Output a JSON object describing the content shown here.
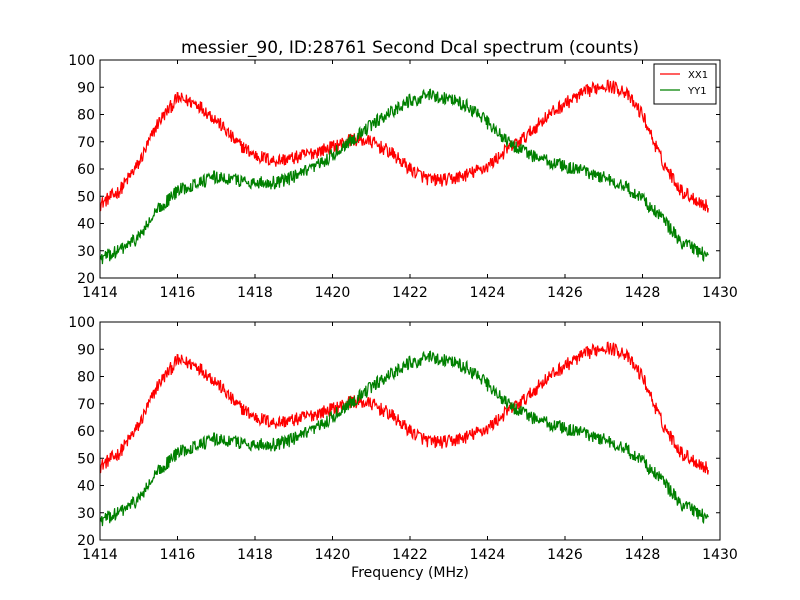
{
  "figure": {
    "title": "messier_90, ID:28761 Second Dcal spectrum (counts)",
    "xlabel": "Frequency (MHz)"
  },
  "chart_data": [
    {
      "type": "line",
      "title": "messier_90, ID:28761 Second Dcal spectrum (counts)",
      "xlabel": "",
      "ylabel": "",
      "xlim": [
        1414,
        1430
      ],
      "ylim": [
        20,
        100
      ],
      "x_ticks": [
        1414,
        1416,
        1418,
        1420,
        1422,
        1424,
        1426,
        1428,
        1430
      ],
      "y_ticks": [
        20,
        30,
        40,
        50,
        60,
        70,
        80,
        90,
        100
      ],
      "grid": false,
      "legend": "top-right",
      "x_range_data": [
        1414.0,
        1429.7
      ],
      "noise_amplitude": 2.5,
      "series": [
        {
          "name": "XX1",
          "color": "#ff0000",
          "points": [
            [
              1414.0,
              47
            ],
            [
              1414.5,
              52
            ],
            [
              1415.0,
              62
            ],
            [
              1415.5,
              77
            ],
            [
              1416.0,
              86
            ],
            [
              1416.5,
              84
            ],
            [
              1417.0,
              78
            ],
            [
              1417.5,
              70
            ],
            [
              1418.0,
              65
            ],
            [
              1418.5,
              63
            ],
            [
              1419.0,
              64
            ],
            [
              1419.5,
              66
            ],
            [
              1420.0,
              68
            ],
            [
              1420.5,
              71
            ],
            [
              1421.0,
              70
            ],
            [
              1421.5,
              66
            ],
            [
              1422.0,
              60
            ],
            [
              1422.5,
              56
            ],
            [
              1423.0,
              56
            ],
            [
              1423.5,
              58
            ],
            [
              1424.0,
              61
            ],
            [
              1424.5,
              67
            ],
            [
              1425.0,
              72
            ],
            [
              1425.5,
              79
            ],
            [
              1426.0,
              84
            ],
            [
              1426.5,
              88
            ],
            [
              1427.0,
              91
            ],
            [
              1427.5,
              89
            ],
            [
              1428.0,
              80
            ],
            [
              1428.5,
              63
            ],
            [
              1429.0,
              52
            ],
            [
              1429.7,
              46
            ]
          ]
        },
        {
          "name": "YY1",
          "color": "#008000",
          "points": [
            [
              1414.0,
              27
            ],
            [
              1414.5,
              30
            ],
            [
              1415.0,
              35
            ],
            [
              1415.5,
              45
            ],
            [
              1416.0,
              52
            ],
            [
              1416.5,
              55
            ],
            [
              1417.0,
              57
            ],
            [
              1417.5,
              56
            ],
            [
              1418.0,
              55
            ],
            [
              1418.5,
              55
            ],
            [
              1419.0,
              57
            ],
            [
              1419.5,
              60
            ],
            [
              1420.0,
              65
            ],
            [
              1420.5,
              71
            ],
            [
              1421.0,
              76
            ],
            [
              1421.5,
              81
            ],
            [
              1422.0,
              85
            ],
            [
              1422.5,
              87
            ],
            [
              1423.0,
              86
            ],
            [
              1423.5,
              83
            ],
            [
              1424.0,
              77
            ],
            [
              1424.5,
              70
            ],
            [
              1425.0,
              66
            ],
            [
              1425.5,
              63
            ],
            [
              1426.0,
              61
            ],
            [
              1426.5,
              59
            ],
            [
              1427.0,
              57
            ],
            [
              1427.5,
              54
            ],
            [
              1428.0,
              49
            ],
            [
              1428.5,
              42
            ],
            [
              1429.0,
              33
            ],
            [
              1429.7,
              28
            ]
          ]
        }
      ]
    },
    {
      "type": "line",
      "title": "",
      "xlabel": "Frequency (MHz)",
      "ylabel": "",
      "xlim": [
        1414,
        1430
      ],
      "ylim": [
        20,
        100
      ],
      "x_ticks": [
        1414,
        1416,
        1418,
        1420,
        1422,
        1424,
        1426,
        1428,
        1430
      ],
      "y_ticks": [
        20,
        30,
        40,
        50,
        60,
        70,
        80,
        90,
        100
      ],
      "grid": false,
      "x_range_data": [
        1414.0,
        1429.7
      ],
      "noise_amplitude": 2.5,
      "series": [
        {
          "color": "#ff0000",
          "points": [
            [
              1414.0,
              47
            ],
            [
              1414.5,
              52
            ],
            [
              1415.0,
              62
            ],
            [
              1415.5,
              77
            ],
            [
              1416.0,
              86
            ],
            [
              1416.5,
              84
            ],
            [
              1417.0,
              78
            ],
            [
              1417.5,
              70
            ],
            [
              1418.0,
              65
            ],
            [
              1418.5,
              63
            ],
            [
              1419.0,
              64
            ],
            [
              1419.5,
              66
            ],
            [
              1420.0,
              68
            ],
            [
              1420.5,
              71
            ],
            [
              1421.0,
              70
            ],
            [
              1421.5,
              66
            ],
            [
              1422.0,
              60
            ],
            [
              1422.5,
              56
            ],
            [
              1423.0,
              56
            ],
            [
              1423.5,
              58
            ],
            [
              1424.0,
              61
            ],
            [
              1424.5,
              67
            ],
            [
              1425.0,
              72
            ],
            [
              1425.5,
              79
            ],
            [
              1426.0,
              84
            ],
            [
              1426.5,
              88
            ],
            [
              1427.0,
              91
            ],
            [
              1427.5,
              89
            ],
            [
              1428.0,
              80
            ],
            [
              1428.5,
              63
            ],
            [
              1429.0,
              52
            ],
            [
              1429.7,
              46
            ]
          ]
        },
        {
          "color": "#008000",
          "points": [
            [
              1414.0,
              27
            ],
            [
              1414.5,
              30
            ],
            [
              1415.0,
              35
            ],
            [
              1415.5,
              45
            ],
            [
              1416.0,
              52
            ],
            [
              1416.5,
              55
            ],
            [
              1417.0,
              57
            ],
            [
              1417.5,
              56
            ],
            [
              1418.0,
              55
            ],
            [
              1418.5,
              55
            ],
            [
              1419.0,
              57
            ],
            [
              1419.5,
              60
            ],
            [
              1420.0,
              65
            ],
            [
              1420.5,
              71
            ],
            [
              1421.0,
              76
            ],
            [
              1421.5,
              81
            ],
            [
              1422.0,
              85
            ],
            [
              1422.5,
              87
            ],
            [
              1423.0,
              86
            ],
            [
              1423.5,
              83
            ],
            [
              1424.0,
              77
            ],
            [
              1424.5,
              70
            ],
            [
              1425.0,
              66
            ],
            [
              1425.5,
              63
            ],
            [
              1426.0,
              61
            ],
            [
              1426.5,
              59
            ],
            [
              1427.0,
              57
            ],
            [
              1427.5,
              54
            ],
            [
              1428.0,
              49
            ],
            [
              1428.5,
              42
            ],
            [
              1429.0,
              33
            ],
            [
              1429.7,
              28
            ]
          ]
        }
      ]
    }
  ]
}
